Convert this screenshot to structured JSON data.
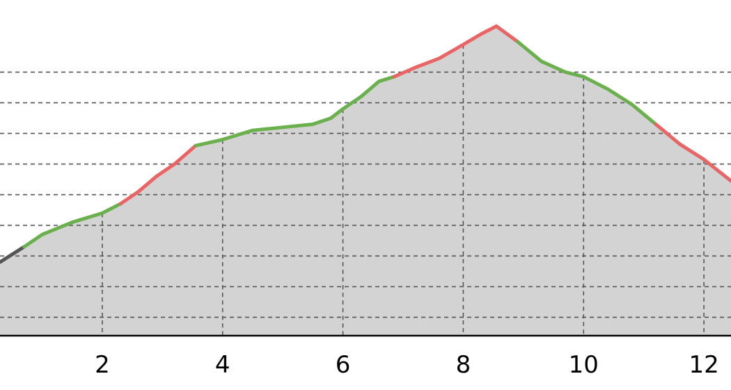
{
  "chart_data": {
    "type": "area",
    "title": "",
    "xlabel": "",
    "ylabel": "",
    "xlim": [
      0.3,
      12.45
    ],
    "ylim": [
      0,
      10
    ],
    "x_ticks": [
      2,
      4,
      6,
      8,
      10,
      12
    ],
    "x_tick_labels": [
      "2",
      "4",
      "6",
      "8",
      "10",
      "12"
    ],
    "y_gridlines": [
      0.6,
      1.6,
      2.6,
      3.6,
      4.6,
      5.6,
      6.6,
      7.6,
      8.6
    ],
    "grid": true,
    "colors": {
      "fill": "#d3d3d3",
      "up": "#6ab04c",
      "down": "#e96464",
      "flat": "#555555",
      "grid": "#555555",
      "axis": "#000000"
    },
    "series": [
      {
        "x": [
          0.3,
          0.7,
          1.0,
          1.5,
          2.0,
          2.3,
          2.6,
          2.9,
          3.2,
          3.55,
          4.0,
          4.5,
          5.0,
          5.5,
          5.8,
          6.0,
          6.3,
          6.6,
          6.85,
          7.2,
          7.6,
          8.0,
          8.3,
          8.55,
          8.9,
          9.3,
          9.7,
          10.0,
          10.4,
          10.8,
          11.2,
          11.6,
          12.0,
          12.45
        ],
        "y": [
          2.4,
          2.9,
          3.3,
          3.7,
          4.0,
          4.3,
          4.7,
          5.2,
          5.6,
          6.2,
          6.4,
          6.7,
          6.8,
          6.9,
          7.1,
          7.4,
          7.8,
          8.3,
          8.45,
          8.75,
          9.05,
          9.5,
          9.85,
          10.1,
          9.6,
          8.95,
          8.6,
          8.45,
          8.05,
          7.55,
          6.9,
          6.25,
          5.75,
          5.05
        ],
        "segment_trend": [
          "flat",
          "up",
          "up",
          "up",
          "up",
          "down",
          "down",
          "down",
          "down",
          "up",
          "up",
          "up",
          "up",
          "up",
          "up",
          "up",
          "up",
          "up",
          "down",
          "down",
          "down",
          "down",
          "down",
          "down",
          "up",
          "up",
          "up",
          "up",
          "up",
          "up",
          "down",
          "down",
          "down"
        ]
      }
    ]
  }
}
